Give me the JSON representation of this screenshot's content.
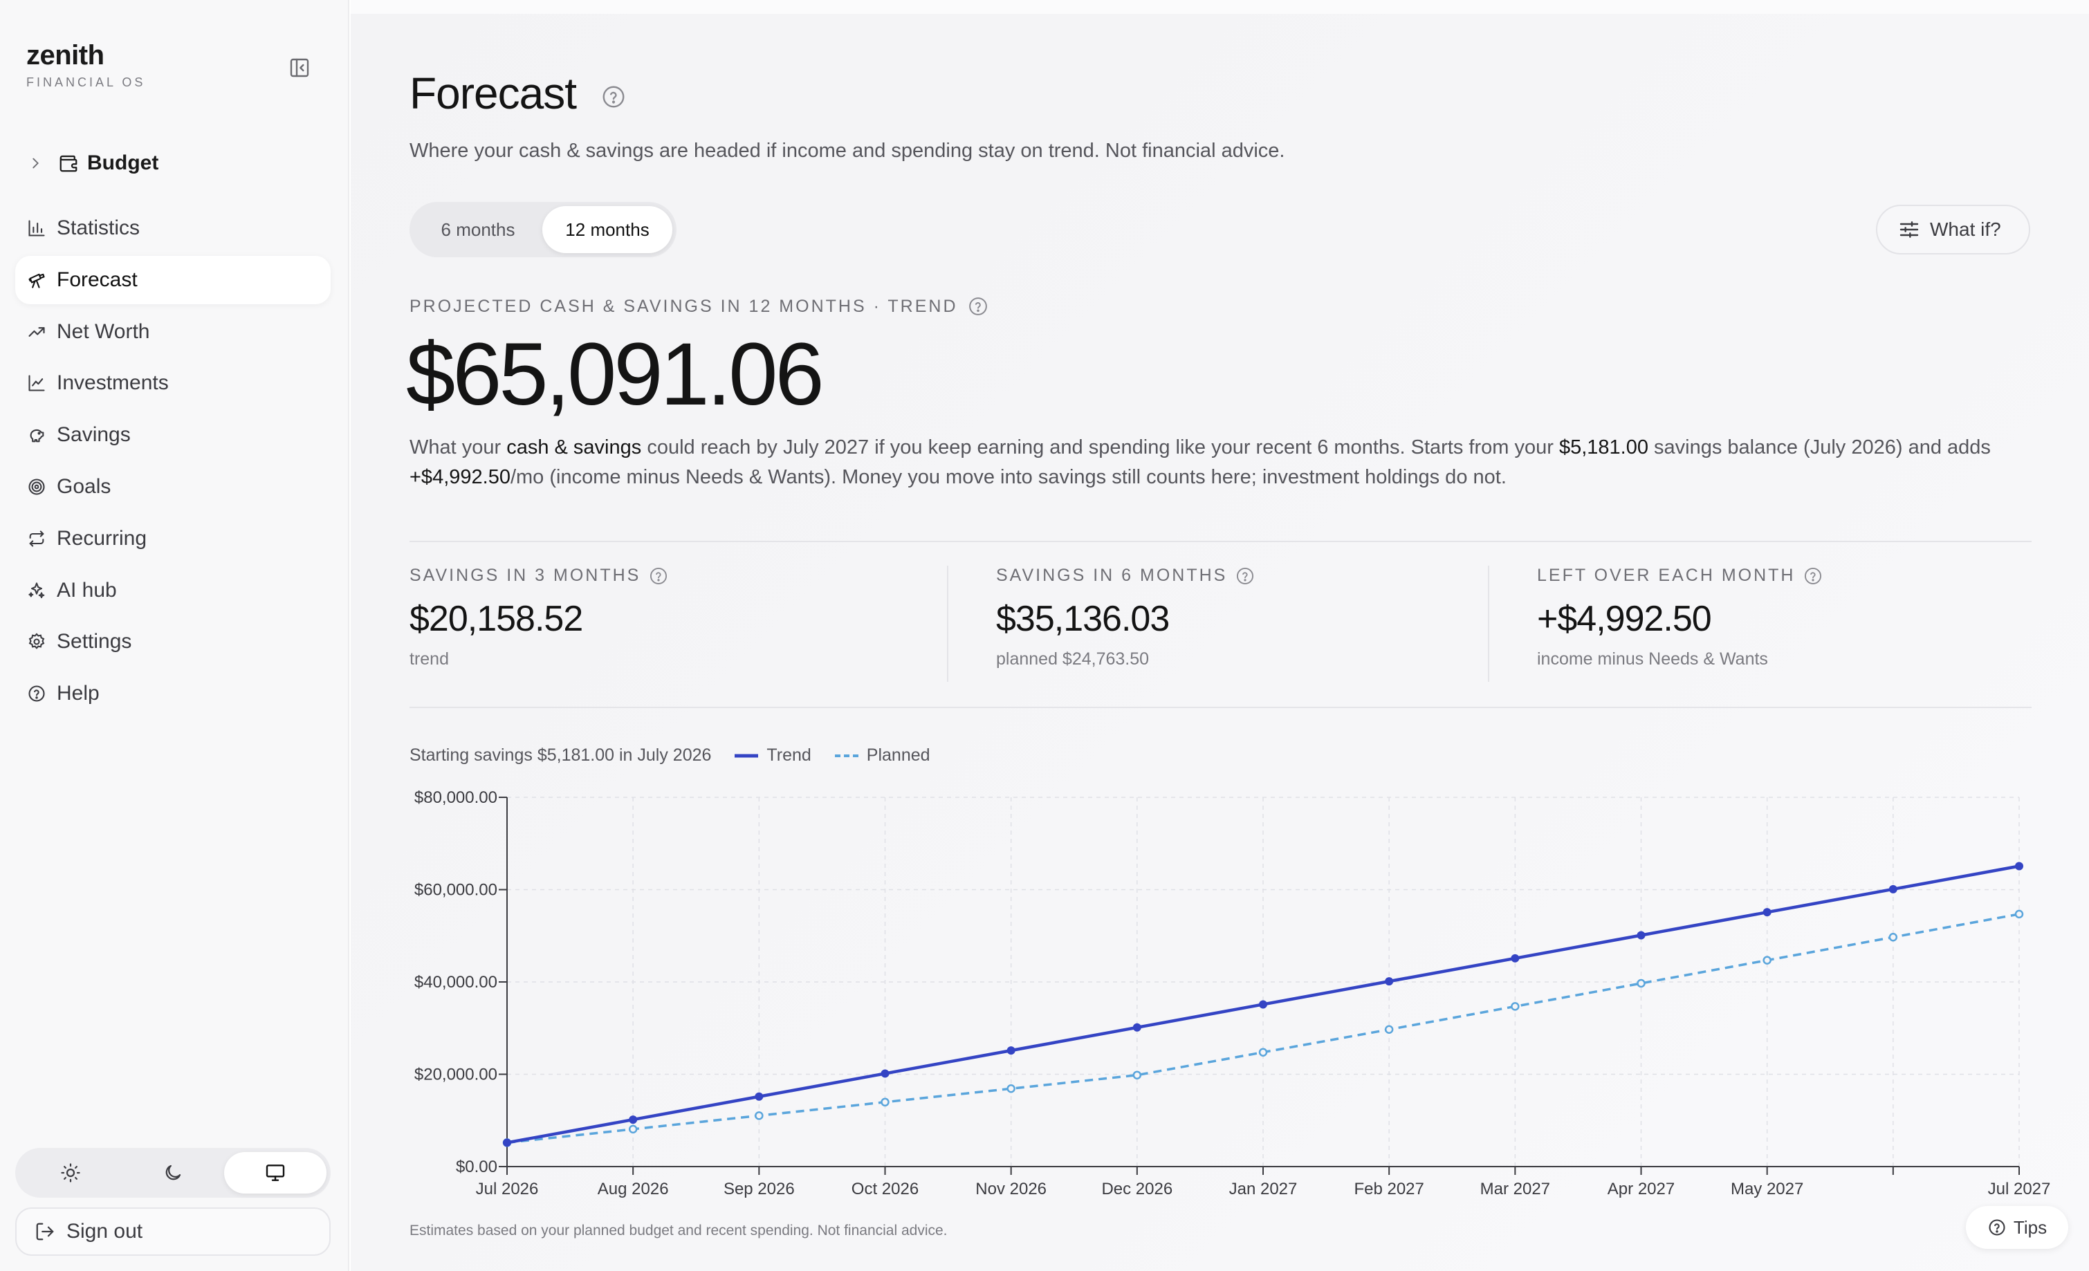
{
  "brand": {
    "name": "zenith",
    "subtitle": "FINANCIAL OS"
  },
  "sidebar": {
    "group": {
      "label": "Budget",
      "icon": "wallet-icon"
    },
    "items": [
      {
        "label": "Statistics",
        "icon": "bar-chart-icon",
        "active": false
      },
      {
        "label": "Forecast",
        "icon": "telescope-icon",
        "active": true
      },
      {
        "label": "Net Worth",
        "icon": "trending-up-icon",
        "active": false
      },
      {
        "label": "Investments",
        "icon": "line-chart-icon",
        "active": false
      },
      {
        "label": "Savings",
        "icon": "piggy-bank-icon",
        "active": false
      },
      {
        "label": "Goals",
        "icon": "target-icon",
        "active": false
      },
      {
        "label": "Recurring",
        "icon": "repeat-icon",
        "active": false
      },
      {
        "label": "AI hub",
        "icon": "sparkles-icon",
        "active": false
      },
      {
        "label": "Settings",
        "icon": "gear-icon",
        "active": false
      },
      {
        "label": "Help",
        "icon": "help-circle-icon",
        "active": false
      }
    ],
    "theme": {
      "options": [
        "light",
        "dark",
        "system"
      ],
      "selected": "system"
    },
    "signout_label": "Sign out"
  },
  "page": {
    "title": "Forecast",
    "subtitle": "Where your cash & savings are headed if income and spending stay on trend. Not financial advice.",
    "range_toggle": {
      "options": [
        "6 months",
        "12 months"
      ],
      "selected": "12 months"
    },
    "whatif_label": "What if?",
    "projected_label": "PROJECTED CASH & SAVINGS IN 12 MONTHS · TREND",
    "projected_value": "$65,091.06",
    "description": {
      "p1": "What your ",
      "h1": "cash & savings",
      "p2": " could reach by July 2027 if you keep earning and spending like your recent 6 months. Starts from your ",
      "h2": "$5,181.00",
      "p3": " savings balance (July 2026) and adds ",
      "h3": "+$4,992.50",
      "p4": "/mo (income minus Needs & Wants). Money you move into savings still counts here; investment holdings do not."
    },
    "stats": [
      {
        "label": "SAVINGS IN 3 MONTHS",
        "value": "$20,158.52",
        "note": "trend"
      },
      {
        "label": "SAVINGS IN 6 MONTHS",
        "value": "$35,136.03",
        "note": "planned $24,763.50"
      },
      {
        "label": "LEFT OVER EACH MONTH",
        "value": "+$4,992.50",
        "note": "income minus Needs & Wants"
      }
    ],
    "legend": {
      "starting": "Starting savings $5,181.00 in July 2026",
      "trend": "Trend",
      "planned": "Planned"
    },
    "footnote": "Estimates based on your planned budget and recent spending. Not financial advice.",
    "tips_label": "Tips"
  },
  "colors": {
    "trend": "#3444c4",
    "planned": "#5aa5dc",
    "accent": "#141414"
  },
  "chart_data": {
    "type": "line",
    "x": [
      "Jul 2026",
      "Aug 2026",
      "Sep 2026",
      "Oct 2026",
      "Nov 2026",
      "Dec 2026",
      "Jan 2027",
      "Feb 2027",
      "Mar 2027",
      "Apr 2027",
      "May 2027",
      "",
      "Jul 2027"
    ],
    "series": [
      {
        "name": "Trend",
        "values": [
          5181,
          10174,
          15166,
          20159,
          25151,
          30144,
          35136,
          40129,
          45121,
          50114,
          55106,
          60099,
          65091
        ]
      },
      {
        "name": "Planned",
        "values": [
          5181,
          8109,
          11036,
          13964,
          16891,
          19819,
          24764,
          29700,
          34700,
          39700,
          44700,
          49700,
          54700
        ]
      }
    ],
    "yticks": [
      "$0.00",
      "$20,000.00",
      "$40,000.00",
      "$60,000.00",
      "$80,000.00"
    ],
    "ylim": [
      0,
      80000
    ],
    "grid": true,
    "legend": "top-left"
  }
}
